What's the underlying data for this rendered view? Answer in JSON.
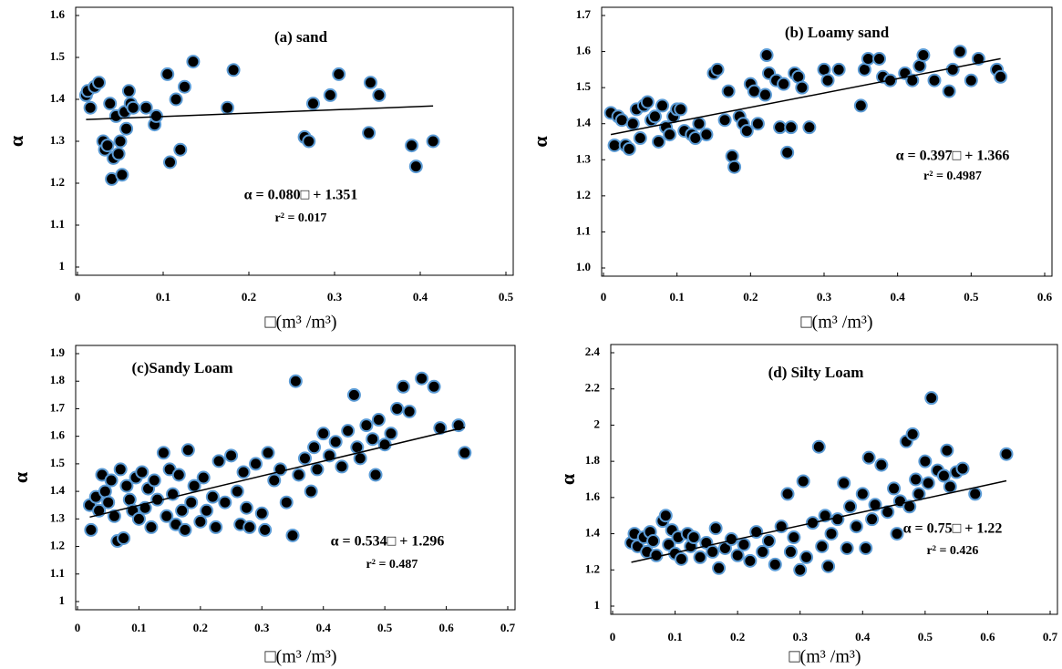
{
  "chart_data": [
    {
      "type": "scatter",
      "title": "(a) sand",
      "x_label": "□(m³ /m³)",
      "y_label": "α",
      "annotations": [
        "α = 0.080□ + 1.351",
        "r² = 0.017"
      ],
      "trendline": {
        "slope": 0.08,
        "intercept": 1.351
      },
      "color": "#000000",
      "edge_color": "#5b9bd5",
      "xlim": [
        0,
        0.5
      ],
      "ylim": [
        1,
        1.6
      ],
      "xticks": [
        0,
        0.1,
        0.2,
        0.3,
        0.4,
        0.5
      ],
      "yticks": [
        1,
        1.1,
        1.2,
        1.3,
        1.4,
        1.5,
        1.6
      ],
      "x": [
        0.01,
        0.012,
        0.015,
        0.02,
        0.025,
        0.03,
        0.032,
        0.035,
        0.038,
        0.04,
        0.042,
        0.045,
        0.048,
        0.05,
        0.052,
        0.055,
        0.057,
        0.06,
        0.062,
        0.065,
        0.08,
        0.09,
        0.092,
        0.105,
        0.108,
        0.115,
        0.12,
        0.125,
        0.135,
        0.175,
        0.182,
        0.265,
        0.27,
        0.275,
        0.295,
        0.305,
        0.34,
        0.342,
        0.352,
        0.39,
        0.395,
        0.415
      ],
      "y": [
        1.41,
        1.42,
        1.38,
        1.43,
        1.44,
        1.3,
        1.28,
        1.29,
        1.39,
        1.21,
        1.26,
        1.36,
        1.27,
        1.3,
        1.22,
        1.37,
        1.33,
        1.42,
        1.39,
        1.38,
        1.38,
        1.34,
        1.36,
        1.46,
        1.25,
        1.4,
        1.28,
        1.43,
        1.49,
        1.38,
        1.47,
        1.31,
        1.3,
        1.39,
        1.41,
        1.46,
        1.32,
        1.44,
        1.41,
        1.29,
        1.24,
        1.3
      ]
    },
    {
      "type": "scatter",
      "title": "(b) Loamy sand",
      "x_label": "□(m³ /m³)",
      "y_label": "α",
      "annotations": [
        "α = 0.397□ + 1.366",
        "r² = 0.4987"
      ],
      "trendline": {
        "slope": 0.397,
        "intercept": 1.366
      },
      "color": "#000000",
      "edge_color": "#5b9bd5",
      "xlim": [
        0,
        0.6
      ],
      "ylim": [
        1,
        1.7
      ],
      "xticks": [
        0,
        0.1,
        0.2,
        0.3,
        0.4,
        0.5,
        0.6
      ],
      "yticks": [
        {
          "value": 1,
          "label": "1.0"
        },
        1.1,
        1.2,
        1.3,
        1.4,
        1.5,
        1.6,
        1.7
      ],
      "x": [
        0.01,
        0.015,
        0.02,
        0.025,
        0.03,
        0.035,
        0.04,
        0.045,
        0.05,
        0.055,
        0.06,
        0.065,
        0.07,
        0.075,
        0.08,
        0.085,
        0.09,
        0.095,
        0.1,
        0.105,
        0.11,
        0.12,
        0.125,
        0.13,
        0.14,
        0.15,
        0.155,
        0.165,
        0.17,
        0.175,
        0.178,
        0.185,
        0.19,
        0.195,
        0.2,
        0.205,
        0.21,
        0.22,
        0.222,
        0.225,
        0.235,
        0.24,
        0.245,
        0.25,
        0.255,
        0.26,
        0.265,
        0.27,
        0.28,
        0.3,
        0.305,
        0.32,
        0.35,
        0.355,
        0.36,
        0.375,
        0.38,
        0.39,
        0.41,
        0.42,
        0.43,
        0.435,
        0.45,
        0.47,
        0.475,
        0.485,
        0.5,
        0.51,
        0.535,
        0.54
      ],
      "y": [
        1.43,
        1.34,
        1.42,
        1.41,
        1.34,
        1.33,
        1.4,
        1.44,
        1.36,
        1.45,
        1.46,
        1.41,
        1.42,
        1.35,
        1.45,
        1.39,
        1.37,
        1.42,
        1.44,
        1.44,
        1.38,
        1.37,
        1.36,
        1.4,
        1.37,
        1.54,
        1.55,
        1.41,
        1.49,
        1.31,
        1.28,
        1.42,
        1.4,
        1.38,
        1.51,
        1.49,
        1.4,
        1.48,
        1.59,
        1.54,
        1.52,
        1.39,
        1.51,
        1.32,
        1.39,
        1.54,
        1.53,
        1.5,
        1.39,
        1.55,
        1.52,
        1.55,
        1.45,
        1.55,
        1.58,
        1.58,
        1.53,
        1.52,
        1.54,
        1.52,
        1.56,
        1.59,
        1.52,
        1.49,
        1.55,
        1.6,
        1.52,
        1.58,
        1.55,
        1.53
      ]
    },
    {
      "type": "scatter",
      "title": "(c)Sandy Loam",
      "x_label": "□(m³ /m³)",
      "y_label": "α",
      "annotations": [
        "α = 0.534□ + 1.296",
        "r² = 0.487"
      ],
      "trendline": {
        "slope": 0.534,
        "intercept": 1.296
      },
      "color": "#000000",
      "edge_color": "#5b9bd5",
      "xlim": [
        0,
        0.7
      ],
      "ylim": [
        1,
        1.9
      ],
      "xticks": [
        0,
        0.1,
        0.2,
        0.3,
        0.4,
        0.5,
        0.6,
        0.7
      ],
      "yticks": [
        1,
        1.1,
        1.2,
        1.3,
        1.4,
        1.5,
        1.6,
        1.7,
        1.8,
        1.9
      ],
      "x": [
        0.02,
        0.022,
        0.03,
        0.035,
        0.04,
        0.045,
        0.05,
        0.055,
        0.06,
        0.065,
        0.07,
        0.075,
        0.08,
        0.085,
        0.09,
        0.095,
        0.1,
        0.105,
        0.11,
        0.115,
        0.12,
        0.125,
        0.13,
        0.14,
        0.145,
        0.15,
        0.155,
        0.16,
        0.165,
        0.17,
        0.175,
        0.18,
        0.185,
        0.19,
        0.2,
        0.205,
        0.21,
        0.22,
        0.225,
        0.23,
        0.24,
        0.25,
        0.26,
        0.265,
        0.27,
        0.275,
        0.28,
        0.29,
        0.3,
        0.305,
        0.31,
        0.32,
        0.33,
        0.34,
        0.35,
        0.355,
        0.36,
        0.37,
        0.38,
        0.385,
        0.39,
        0.4,
        0.41,
        0.42,
        0.43,
        0.44,
        0.45,
        0.455,
        0.46,
        0.47,
        0.48,
        0.485,
        0.49,
        0.5,
        0.51,
        0.52,
        0.53,
        0.54,
        0.56,
        0.58,
        0.59,
        0.62,
        0.63
      ],
      "y": [
        1.35,
        1.26,
        1.38,
        1.33,
        1.46,
        1.4,
        1.36,
        1.44,
        1.31,
        1.22,
        1.48,
        1.23,
        1.42,
        1.37,
        1.33,
        1.45,
        1.3,
        1.47,
        1.34,
        1.41,
        1.27,
        1.44,
        1.37,
        1.54,
        1.31,
        1.48,
        1.39,
        1.28,
        1.46,
        1.33,
        1.26,
        1.55,
        1.36,
        1.42,
        1.29,
        1.45,
        1.33,
        1.38,
        1.27,
        1.51,
        1.36,
        1.53,
        1.4,
        1.28,
        1.47,
        1.34,
        1.27,
        1.5,
        1.32,
        1.26,
        1.54,
        1.44,
        1.48,
        1.36,
        1.24,
        1.8,
        1.46,
        1.52,
        1.4,
        1.56,
        1.48,
        1.61,
        1.53,
        1.58,
        1.49,
        1.62,
        1.75,
        1.56,
        1.52,
        1.64,
        1.59,
        1.46,
        1.66,
        1.57,
        1.61,
        1.7,
        1.78,
        1.69,
        1.81,
        1.78,
        1.63,
        1.64,
        1.54
      ]
    },
    {
      "type": "scatter",
      "title": "(d) Silty Loam",
      "x_label": "□(m³ /m³)",
      "y_label": "α",
      "annotations": [
        "α = 0.75□ + 1.22",
        "r² = 0.426"
      ],
      "trendline": {
        "slope": 0.75,
        "intercept": 1.22
      },
      "color": "#000000",
      "edge_color": "#5b9bd5",
      "xlim": [
        0,
        0.7
      ],
      "ylim": [
        1,
        2.4
      ],
      "xticks": [
        0,
        0.1,
        0.2,
        0.3,
        0.4,
        0.5,
        0.6,
        0.7
      ],
      "yticks": [
        1,
        1.2,
        1.4,
        1.6,
        1.8,
        2,
        2.2,
        2.4
      ],
      "x": [
        0.03,
        0.035,
        0.04,
        0.05,
        0.055,
        0.06,
        0.065,
        0.07,
        0.08,
        0.085,
        0.09,
        0.095,
        0.1,
        0.105,
        0.11,
        0.12,
        0.125,
        0.13,
        0.14,
        0.15,
        0.16,
        0.165,
        0.17,
        0.18,
        0.19,
        0.2,
        0.21,
        0.22,
        0.23,
        0.24,
        0.25,
        0.26,
        0.27,
        0.28,
        0.285,
        0.29,
        0.3,
        0.305,
        0.31,
        0.32,
        0.33,
        0.335,
        0.34,
        0.345,
        0.35,
        0.36,
        0.37,
        0.375,
        0.38,
        0.39,
        0.4,
        0.405,
        0.41,
        0.415,
        0.42,
        0.43,
        0.44,
        0.45,
        0.455,
        0.46,
        0.47,
        0.475,
        0.48,
        0.485,
        0.49,
        0.5,
        0.505,
        0.51,
        0.52,
        0.53,
        0.535,
        0.54,
        0.55,
        0.56,
        0.58,
        0.63
      ],
      "y": [
        1.35,
        1.4,
        1.33,
        1.38,
        1.3,
        1.41,
        1.36,
        1.28,
        1.47,
        1.5,
        1.34,
        1.42,
        1.29,
        1.38,
        1.26,
        1.4,
        1.33,
        1.38,
        1.27,
        1.35,
        1.3,
        1.43,
        1.21,
        1.32,
        1.37,
        1.28,
        1.34,
        1.25,
        1.41,
        1.3,
        1.36,
        1.23,
        1.44,
        1.62,
        1.3,
        1.38,
        1.2,
        1.69,
        1.27,
        1.46,
        1.88,
        1.33,
        1.5,
        1.22,
        1.4,
        1.48,
        1.68,
        1.32,
        1.55,
        1.44,
        1.62,
        1.32,
        1.82,
        1.48,
        1.56,
        1.78,
        1.52,
        1.65,
        1.4,
        1.58,
        1.91,
        1.55,
        1.95,
        1.7,
        1.62,
        1.8,
        1.68,
        2.15,
        1.75,
        1.72,
        1.86,
        1.66,
        1.74,
        1.76,
        1.62,
        1.84
      ]
    }
  ]
}
